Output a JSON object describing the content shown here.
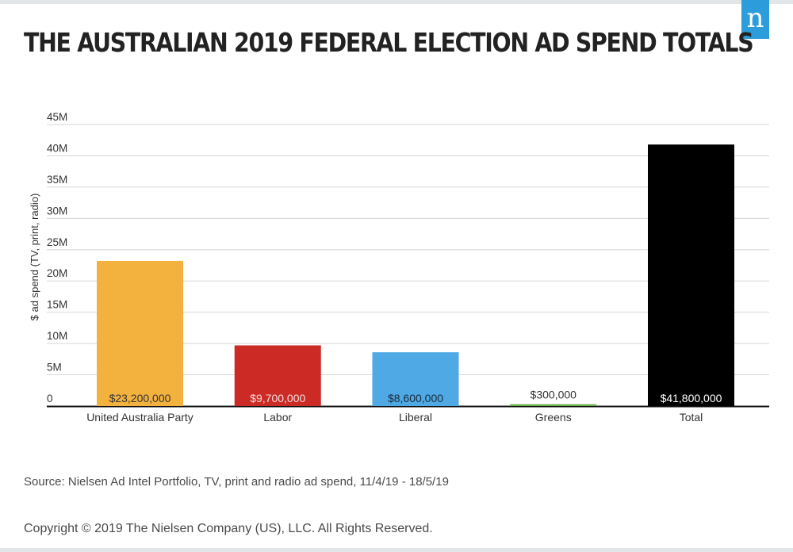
{
  "logo": {
    "letter": "n"
  },
  "header": {
    "title": "THE AUSTRALIAN 2019 FEDERAL ELECTION AD SPEND TOTALS"
  },
  "chart_data": {
    "type": "bar",
    "title": "THE AUSTRALIAN 2019 FEDERAL ELECTION AD SPEND TOTALS",
    "xlabel": "",
    "ylabel": "$ ad spend (TV, print, radio)",
    "categories": [
      "United Australia Party",
      "Labor",
      "Liberal",
      "Greens",
      "Total"
    ],
    "values": [
      23200000,
      9700000,
      8600000,
      300000,
      41800000
    ],
    "value_labels": [
      "$23,200,000",
      "$9,700,000",
      "$8,600,000",
      "$300,000",
      "$41,800,000"
    ],
    "colors": [
      "#f3b23e",
      "#cc2a25",
      "#4ea9e4",
      "#6ab04c",
      "#000000"
    ],
    "label_colors": [
      "#333333",
      "#f5dede",
      "#1a2a3a",
      "#333333",
      "#ffffff"
    ],
    "ylim": [
      0,
      45000000
    ],
    "yticks": [
      0,
      5000000,
      10000000,
      15000000,
      20000000,
      25000000,
      30000000,
      35000000,
      40000000,
      45000000
    ],
    "ytick_labels": [
      "0",
      "5M",
      "10M",
      "15M",
      "20M",
      "25M",
      "30M",
      "35M",
      "40M",
      "45M"
    ],
    "grid": true,
    "legend": "none"
  },
  "footer": {
    "source": "Source: Nielsen Ad Intel Portfolio, TV, print and radio ad spend, 11/4/19 - 18/5/19",
    "copyright": "Copyright © 2019 The Nielsen Company (US), LLC. All Rights Reserved."
  }
}
